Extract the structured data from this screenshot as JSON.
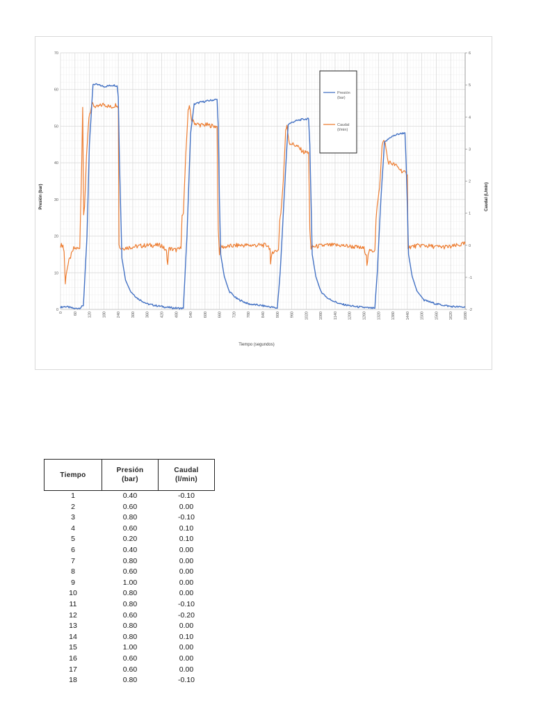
{
  "chart_data": {
    "type": "line",
    "title": "",
    "xlabel": "Tiempo (segundos)",
    "ylabel": "Presión (bar)",
    "y2label": "Caudal (L/min)",
    "xlim": [
      0,
      1680
    ],
    "ylim": [
      0,
      70
    ],
    "y2lim": [
      -2,
      6
    ],
    "x_ticks": [
      0,
      60,
      120,
      180,
      240,
      300,
      360,
      420,
      480,
      540,
      600,
      660,
      720,
      780,
      840,
      900,
      960,
      1020,
      1080,
      1140,
      1200,
      1260,
      1320,
      1380,
      1440,
      1500,
      1560,
      1620,
      1680
    ],
    "y_ticks": [
      0,
      10,
      20,
      30,
      40,
      50,
      60,
      70
    ],
    "y2_ticks": [
      -2,
      -1,
      0,
      1,
      2,
      3,
      4,
      5,
      6
    ],
    "grid": true,
    "legend_position": "upper right (inside plot)",
    "legend": [
      "Presión (bar)",
      "Caudal (l/min)"
    ],
    "series": [
      {
        "name": "Presión (bar)",
        "axis": "left",
        "color": "#4472C4",
        "x": [
          0,
          20,
          60,
          80,
          95,
          110,
          120,
          135,
          160,
          180,
          200,
          220,
          235,
          240,
          245,
          255,
          270,
          290,
          320,
          360,
          400,
          440,
          470,
          500,
          510,
          525,
          540,
          555,
          580,
          620,
          650,
          655,
          660,
          665,
          680,
          700,
          730,
          780,
          840,
          880,
          900,
          912,
          928,
          945,
          970,
          1000,
          1030,
          1035,
          1040,
          1045,
          1060,
          1080,
          1110,
          1160,
          1220,
          1280,
          1305,
          1315,
          1330,
          1345,
          1370,
          1400,
          1430,
          1435,
          1440,
          1445,
          1460,
          1480,
          1510,
          1560,
          1620,
          1680
        ],
        "values": [
          0.6,
          0.8,
          0.2,
          0.4,
          1.0,
          20,
          45,
          61.5,
          61.2,
          60.8,
          61.0,
          61.2,
          61.0,
          58,
          40,
          14,
          8,
          5,
          3,
          1.5,
          1.0,
          0.6,
          0.4,
          0.3,
          0.3,
          20,
          48,
          56,
          56.5,
          57.0,
          57.3,
          50,
          30,
          15,
          9,
          5,
          3,
          1.5,
          1.0,
          0.6,
          0.3,
          10,
          30,
          50.5,
          51.3,
          51.8,
          52.0,
          45,
          30,
          15,
          9,
          5,
          3,
          1.5,
          0.8,
          0.4,
          0.3,
          10,
          30,
          45.5,
          47.0,
          47.8,
          48.2,
          40,
          28,
          15,
          9,
          5,
          2.5,
          1.5,
          0.8,
          0.6
        ]
      },
      {
        "name": "Caudal (l/min)",
        "axis": "right",
        "color": "#ED7D31",
        "x": [
          0,
          10,
          15,
          20,
          25,
          35,
          45,
          55,
          65,
          80,
          88,
          92,
          96,
          100,
          108,
          118,
          130,
          150,
          180,
          210,
          235,
          240,
          243,
          250,
          300,
          360,
          420,
          440,
          445,
          450,
          480,
          500,
          505,
          510,
          520,
          530,
          535,
          545,
          560,
          580,
          610,
          650,
          655,
          660,
          662,
          680,
          740,
          800,
          860,
          870,
          872,
          880,
          905,
          910,
          915,
          925,
          935,
          940,
          950,
          980,
          1010,
          1030,
          1035,
          1040,
          1045,
          1100,
          1160,
          1220,
          1260,
          1270,
          1272,
          1280,
          1305,
          1310,
          1315,
          1325,
          1335,
          1345,
          1360,
          1390,
          1420,
          1440,
          1443,
          1450,
          1500,
          1560,
          1620,
          1680
        ],
        "values": [
          0.0,
          0.0,
          -0.2,
          -1.2,
          -0.8,
          -0.5,
          -0.3,
          -0.1,
          -0.1,
          -0.1,
          2.5,
          4.3,
          1.0,
          1.2,
          2.8,
          4.0,
          4.4,
          4.3,
          4.4,
          4.3,
          4.4,
          4.3,
          0.0,
          -0.1,
          -0.05,
          0.0,
          0.0,
          -0.2,
          -0.6,
          -0.1,
          -0.15,
          -0.1,
          1.0,
          1.0,
          2.8,
          4.2,
          4.3,
          3.9,
          3.8,
          3.75,
          3.75,
          3.7,
          0.5,
          -0.3,
          -0.05,
          -0.05,
          0.0,
          0.0,
          0.0,
          -0.1,
          -0.6,
          -0.2,
          -0.15,
          0.8,
          1.0,
          2.0,
          3.6,
          3.7,
          3.2,
          3.1,
          2.9,
          2.9,
          0.5,
          -0.1,
          -0.05,
          0.0,
          0.0,
          -0.05,
          -0.1,
          -0.3,
          -0.6,
          -0.2,
          -0.15,
          0.8,
          1.3,
          1.8,
          3.1,
          3.3,
          2.6,
          2.5,
          2.3,
          2.2,
          -0.05,
          -0.05,
          0.0,
          -0.05,
          -0.05,
          0.05
        ]
      }
    ]
  },
  "chart": {
    "xlabel": "Tiempo (segundos)",
    "ylabel": "Presión (bar)",
    "y2label": "Caudal (L/min)",
    "legend_pressure_line1": "Presión",
    "legend_pressure_line2": "(bar)",
    "legend_flow_line1": "Caudal",
    "legend_flow_line2": "(l/min)"
  },
  "table": {
    "headers": {
      "tiempo": "Tiempo",
      "presion_line1": "Presión",
      "presion_line2": "(bar)",
      "caudal_line1": "Caudal",
      "caudal_line2": "(l/min)"
    },
    "rows": [
      {
        "tiempo": "1",
        "presion": "0.40",
        "caudal": "-0.10"
      },
      {
        "tiempo": "2",
        "presion": "0.60",
        "caudal": "0.00"
      },
      {
        "tiempo": "3",
        "presion": "0.80",
        "caudal": "-0.10"
      },
      {
        "tiempo": "4",
        "presion": "0.60",
        "caudal": "0.10"
      },
      {
        "tiempo": "5",
        "presion": "0.20",
        "caudal": "0.10"
      },
      {
        "tiempo": "6",
        "presion": "0.40",
        "caudal": "0.00"
      },
      {
        "tiempo": "7",
        "presion": "0.80",
        "caudal": "0.00"
      },
      {
        "tiempo": "8",
        "presion": "0.60",
        "caudal": "0.00"
      },
      {
        "tiempo": "9",
        "presion": "1.00",
        "caudal": "0.00"
      },
      {
        "tiempo": "10",
        "presion": "0.80",
        "caudal": "0.00"
      },
      {
        "tiempo": "11",
        "presion": "0.80",
        "caudal": "-0.10"
      },
      {
        "tiempo": "12",
        "presion": "0.60",
        "caudal": "-0.20"
      },
      {
        "tiempo": "13",
        "presion": "0.80",
        "caudal": "0.00"
      },
      {
        "tiempo": "14",
        "presion": "0.80",
        "caudal": "0.10"
      },
      {
        "tiempo": "15",
        "presion": "1.00",
        "caudal": "0.00"
      },
      {
        "tiempo": "16",
        "presion": "0.60",
        "caudal": "0.00"
      },
      {
        "tiempo": "17",
        "presion": "0.60",
        "caudal": "0.00"
      },
      {
        "tiempo": "18",
        "presion": "0.80",
        "caudal": "-0.10"
      }
    ]
  }
}
